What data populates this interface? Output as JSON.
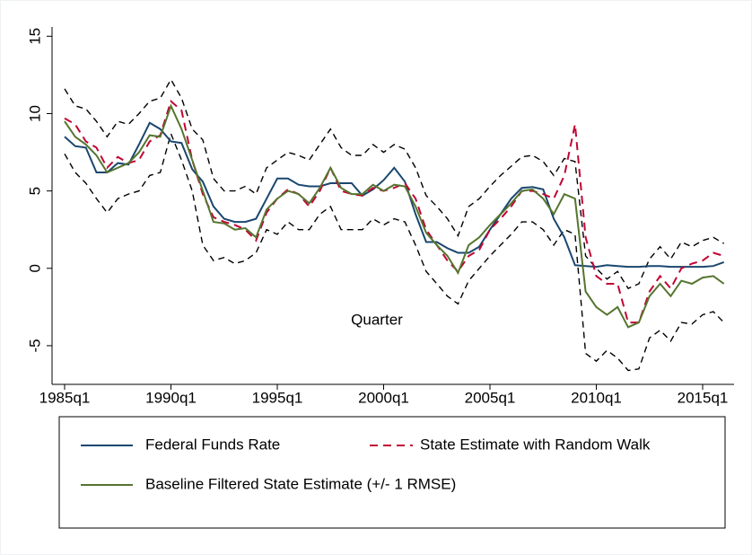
{
  "chart_data": {
    "type": "line",
    "xlabel": "Quarter",
    "x": [
      "1985q1",
      "1985q3",
      "1986q1",
      "1986q3",
      "1987q1",
      "1987q3",
      "1988q1",
      "1988q3",
      "1989q1",
      "1989q3",
      "1990q1",
      "1990q3",
      "1991q1",
      "1991q3",
      "1992q1",
      "1992q3",
      "1993q1",
      "1993q3",
      "1994q1",
      "1994q3",
      "1995q1",
      "1995q3",
      "1996q1",
      "1996q3",
      "1997q1",
      "1997q3",
      "1998q1",
      "1998q3",
      "1999q1",
      "1999q3",
      "2000q1",
      "2000q3",
      "2001q1",
      "2001q3",
      "2002q1",
      "2002q3",
      "2003q1",
      "2003q3",
      "2004q1",
      "2004q3",
      "2005q1",
      "2005q3",
      "2006q1",
      "2006q3",
      "2007q1",
      "2007q3",
      "2008q1",
      "2008q3",
      "2009q1",
      "2009q3",
      "2010q1",
      "2010q3",
      "2011q1",
      "2011q3",
      "2012q1",
      "2012q3",
      "2013q1",
      "2013q3",
      "2014q1",
      "2014q3",
      "2015q1",
      "2015q3",
      "2016q1"
    ],
    "ylim": [
      -7.5,
      15.6
    ],
    "yticks": [
      -5,
      0,
      5,
      10,
      15
    ],
    "grid": false,
    "series": [
      {
        "name": "Federal Funds Rate",
        "color": "#1a476f",
        "dash": false,
        "values": [
          8.5,
          7.9,
          7.8,
          6.2,
          6.2,
          6.8,
          6.7,
          8.0,
          9.4,
          9.0,
          8.2,
          8.1,
          6.4,
          5.6,
          4.0,
          3.2,
          3.0,
          3.0,
          3.2,
          4.5,
          5.8,
          5.8,
          5.4,
          5.3,
          5.3,
          5.5,
          5.5,
          5.5,
          4.7,
          5.1,
          5.7,
          6.5,
          5.6,
          3.5,
          1.7,
          1.7,
          1.3,
          1.0,
          1.0,
          1.4,
          2.5,
          3.5,
          4.5,
          5.2,
          5.25,
          5.1,
          3.2,
          2.0,
          0.2,
          0.15,
          0.1,
          0.2,
          0.15,
          0.1,
          0.1,
          0.15,
          0.15,
          0.1,
          0.1,
          0.1,
          0.1,
          0.15,
          0.4
        ]
      },
      {
        "name": "State Estimate with Random Walk",
        "color": "#c10534",
        "dash": true,
        "values": [
          9.7,
          9.3,
          8.2,
          7.8,
          6.5,
          7.2,
          6.8,
          7.0,
          8.2,
          8.6,
          10.8,
          10.2,
          7.0,
          4.8,
          3.3,
          3.0,
          2.8,
          2.5,
          1.8,
          3.6,
          4.5,
          5.1,
          4.8,
          4.0,
          5.0,
          6.5,
          5.0,
          4.8,
          4.7,
          5.2,
          5.0,
          5.2,
          5.5,
          4.5,
          2.5,
          1.5,
          0.5,
          -0.2,
          0.8,
          1.2,
          2.5,
          3.2,
          4.0,
          5.0,
          5.0,
          4.8,
          4.5,
          6.0,
          9.3,
          2.0,
          -0.5,
          -1.0,
          -1.0,
          -3.5,
          -3.5,
          -1.5,
          -0.5,
          -1.3,
          0.0,
          0.3,
          0.5,
          1.0,
          0.8
        ]
      },
      {
        "name": "Baseline Filtered State Estimate (+/- 1 RMSE)",
        "color": "#55752f",
        "dash": false,
        "values": [
          9.5,
          8.5,
          8.0,
          7.3,
          6.2,
          6.5,
          6.8,
          7.5,
          8.6,
          8.5,
          10.5,
          9.0,
          7.0,
          5.0,
          3.0,
          2.9,
          2.5,
          2.6,
          2.0,
          3.8,
          4.5,
          5.0,
          4.8,
          4.2,
          5.2,
          6.5,
          5.2,
          4.8,
          4.8,
          5.4,
          5.0,
          5.4,
          5.3,
          4.0,
          2.3,
          1.5,
          0.8,
          -0.3,
          1.5,
          2.0,
          2.8,
          3.5,
          4.2,
          5.0,
          5.1,
          4.5,
          3.5,
          4.8,
          4.5,
          -1.5,
          -2.5,
          -3.0,
          -2.5,
          -3.8,
          -3.5,
          -1.8,
          -1.0,
          -1.8,
          -0.8,
          -1.0,
          -0.6,
          -0.5,
          -1.0
        ]
      }
    ],
    "bands": {
      "color": "#000000",
      "upper": [
        11.6,
        10.5,
        10.3,
        9.5,
        8.5,
        9.5,
        9.3,
        10.0,
        10.8,
        11.0,
        12.2,
        11.0,
        9.0,
        8.3,
        5.8,
        5.0,
        5.0,
        5.3,
        4.8,
        6.5,
        7.0,
        7.5,
        7.3,
        7.0,
        8.0,
        9.0,
        7.8,
        7.3,
        7.3,
        8.0,
        7.5,
        8.0,
        7.7,
        6.5,
        4.7,
        4.0,
        3.2,
        2.1,
        4.0,
        4.5,
        5.3,
        6.0,
        6.6,
        7.2,
        7.3,
        6.9,
        6.0,
        7.1,
        6.9,
        0.8,
        0.0,
        -0.7,
        -0.2,
        -1.3,
        -1.0,
        0.6,
        1.4,
        0.6,
        1.7,
        1.4,
        1.8,
        2.0,
        1.6
      ],
      "lower": [
        7.4,
        6.2,
        5.5,
        4.5,
        3.6,
        4.5,
        4.8,
        5.0,
        6.0,
        6.2,
        8.7,
        7.0,
        5.0,
        1.5,
        0.5,
        0.7,
        0.3,
        0.5,
        1.0,
        2.5,
        2.2,
        3.0,
        2.5,
        2.5,
        3.5,
        4.0,
        2.5,
        2.5,
        2.5,
        3.2,
        2.8,
        3.2,
        3.0,
        1.5,
        -0.2,
        -1.0,
        -1.8,
        -2.3,
        -0.8,
        0.0,
        0.8,
        1.5,
        2.2,
        3.0,
        3.0,
        2.5,
        1.5,
        2.5,
        2.2,
        -5.5,
        -6.0,
        -5.3,
        -5.8,
        -6.6,
        -6.5,
        -4.5,
        -4.0,
        -4.7,
        -3.5,
        -3.6,
        -3.0,
        -2.8,
        -3.5
      ]
    }
  }
}
